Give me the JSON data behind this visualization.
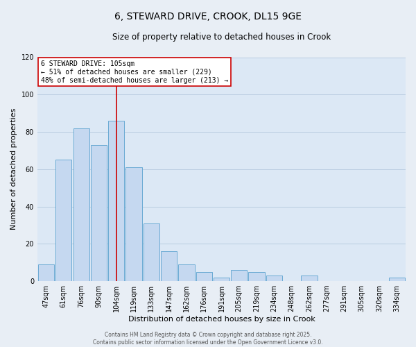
{
  "title": "6, STEWARD DRIVE, CROOK, DL15 9GE",
  "subtitle": "Size of property relative to detached houses in Crook",
  "xlabel": "Distribution of detached houses by size in Crook",
  "ylabel": "Number of detached properties",
  "categories": [
    "47sqm",
    "61sqm",
    "76sqm",
    "90sqm",
    "104sqm",
    "119sqm",
    "133sqm",
    "147sqm",
    "162sqm",
    "176sqm",
    "191sqm",
    "205sqm",
    "219sqm",
    "234sqm",
    "248sqm",
    "262sqm",
    "277sqm",
    "291sqm",
    "305sqm",
    "320sqm",
    "334sqm"
  ],
  "values": [
    9,
    65,
    82,
    73,
    86,
    61,
    31,
    16,
    9,
    5,
    2,
    6,
    5,
    3,
    0,
    3,
    0,
    0,
    0,
    0,
    2
  ],
  "bar_color": "#c5d8f0",
  "bar_edge_color": "#6aaad4",
  "highlight_index": 4,
  "highlight_line_color": "#cc0000",
  "ylim": [
    0,
    120
  ],
  "yticks": [
    0,
    20,
    40,
    60,
    80,
    100,
    120
  ],
  "annotation_title": "6 STEWARD DRIVE: 105sqm",
  "annotation_line1": "← 51% of detached houses are smaller (229)",
  "annotation_line2": "48% of semi-detached houses are larger (213) →",
  "annotation_box_color": "#ffffff",
  "annotation_box_edge_color": "#cc0000",
  "footer_line1": "Contains HM Land Registry data © Crown copyright and database right 2025.",
  "footer_line2": "Contains public sector information licensed under the Open Government Licence v3.0.",
  "background_color": "#e8eef5",
  "plot_background": "#dce8f5",
  "grid_color": "#b8cce0",
  "title_fontsize": 10,
  "subtitle_fontsize": 8.5,
  "xlabel_fontsize": 8,
  "ylabel_fontsize": 8,
  "tick_fontsize": 7,
  "annotation_fontsize": 7,
  "footer_fontsize": 5.5
}
